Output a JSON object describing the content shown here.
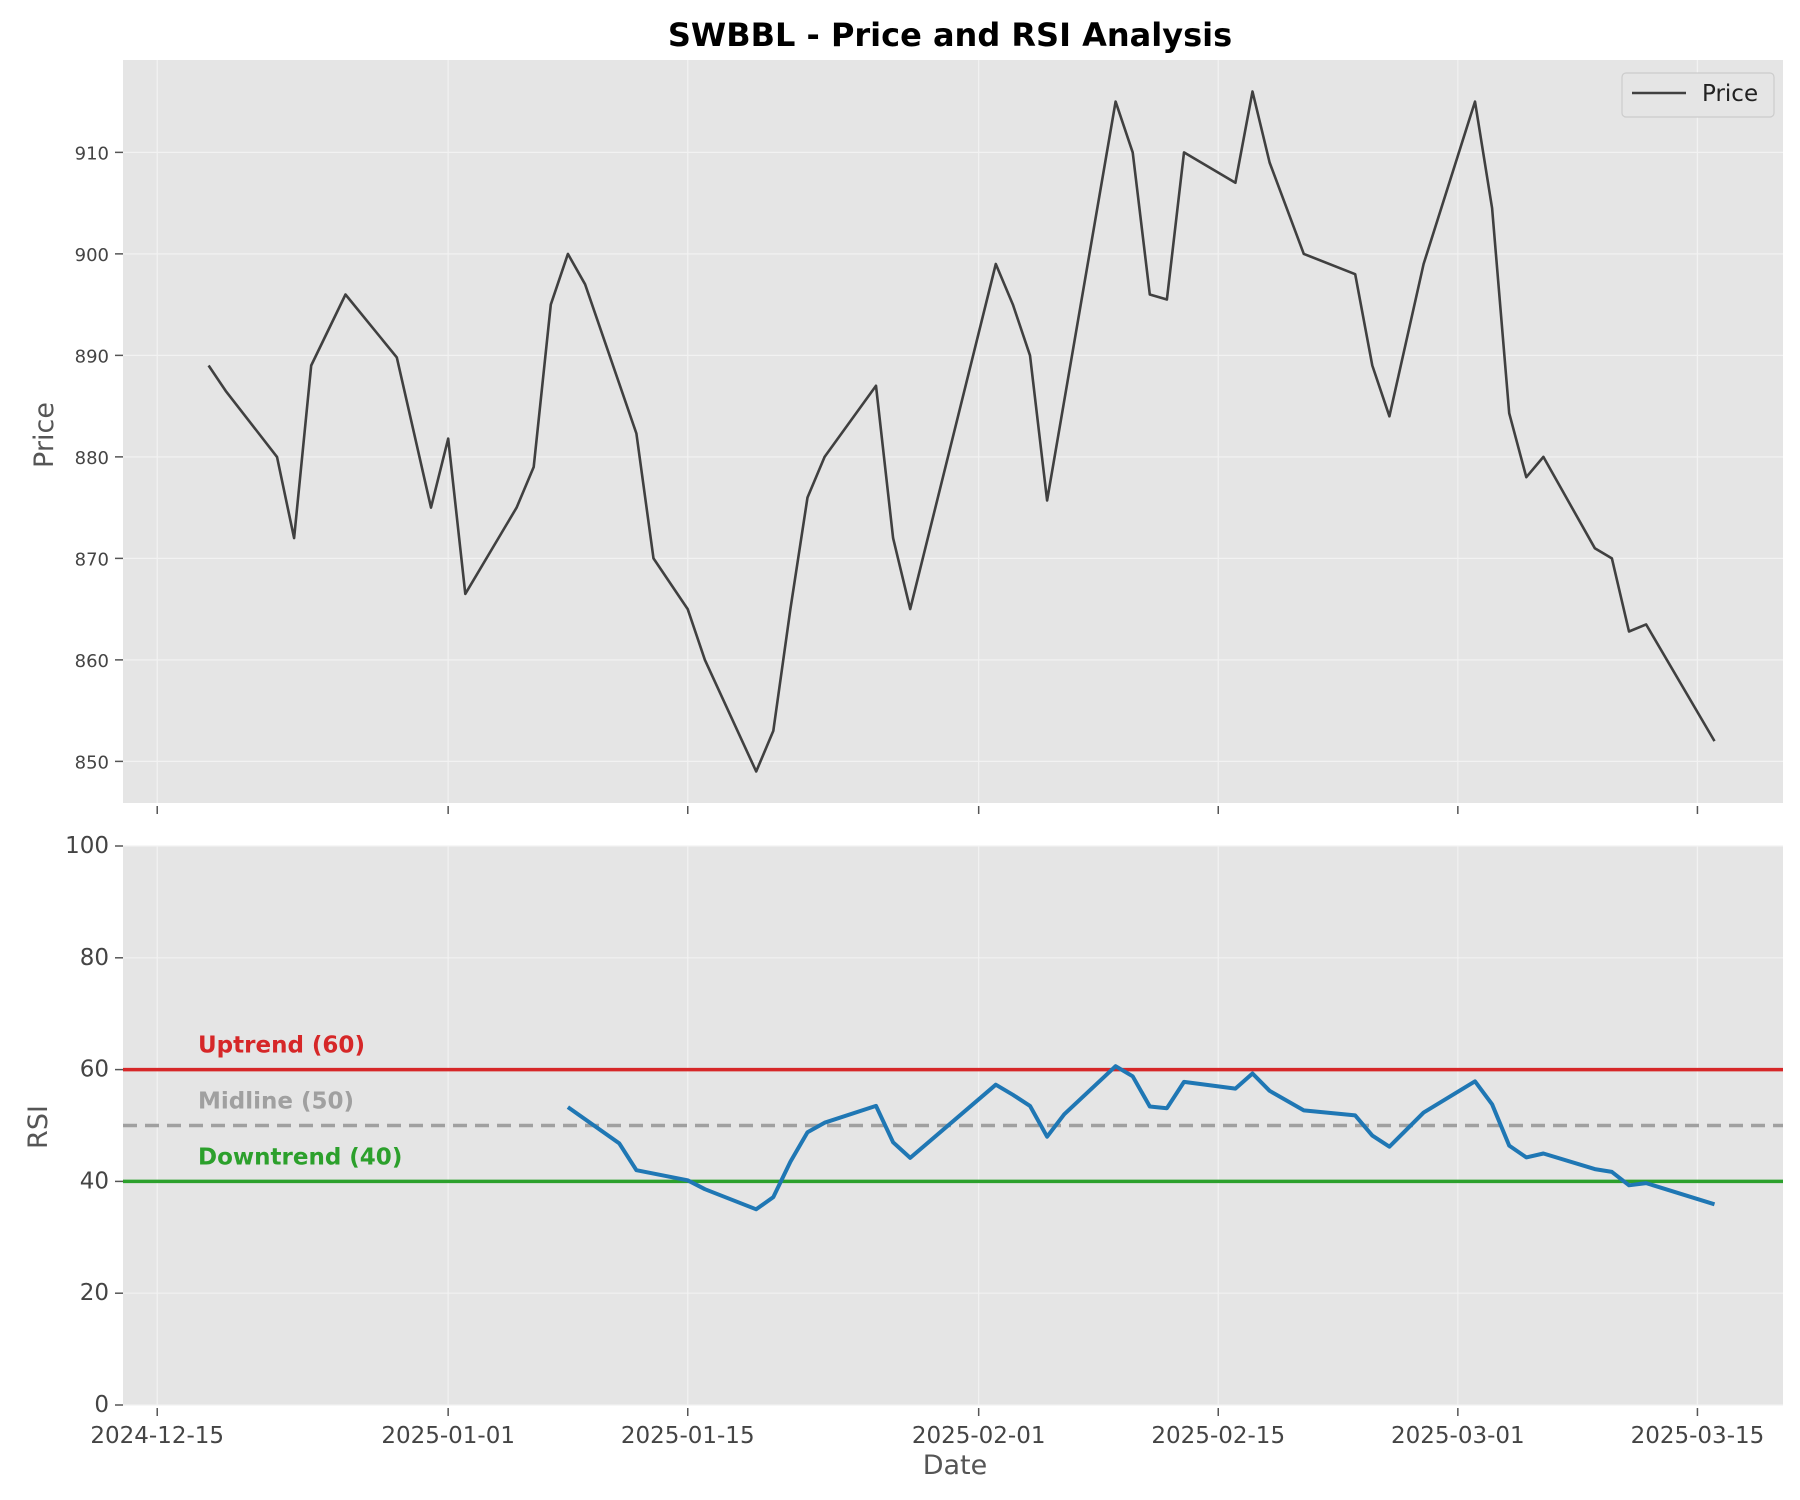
{
  "title": "SWBBL - Price and RSI Analysis",
  "colors": {
    "price_line": "#404040",
    "rsi_line": "#1f77b4",
    "uptrend": "#d62728",
    "midline": "#a0a0a0",
    "downtrend": "#2ca02c",
    "panel_bg": "#e5e5e5",
    "grid": "#f2f2f2"
  },
  "chart_data": [
    {
      "type": "line",
      "panel": "price",
      "ylabel": "Price",
      "xlabel": "",
      "ylim": [
        845.9,
        919.1
      ],
      "yticks": [
        850,
        860,
        870,
        880,
        890,
        900,
        910
      ],
      "xlim": [
        "2024-12-13",
        "2025-03-20"
      ],
      "xticks": [
        "2024-12-15",
        "2025-01-01",
        "2025-01-15",
        "2025-02-01",
        "2025-02-15",
        "2025-03-01",
        "2025-03-15"
      ],
      "grid": true,
      "legend": {
        "position": "top-right",
        "entries": [
          "Price"
        ]
      },
      "series": [
        {
          "name": "Price",
          "points": [
            [
              "2024-12-18",
              889.0
            ],
            [
              "2024-12-19",
              886.5
            ],
            [
              "2024-12-22",
              880.0
            ],
            [
              "2024-12-23",
              872.0
            ],
            [
              "2024-12-24",
              889.0
            ],
            [
              "2024-12-26",
              896.0
            ],
            [
              "2024-12-29",
              889.8
            ],
            [
              "2024-12-31",
              875.0
            ],
            [
              "2025-01-01",
              881.8
            ],
            [
              "2025-01-02",
              866.5
            ],
            [
              "2025-01-05",
              875.0
            ],
            [
              "2025-01-06",
              879.0
            ],
            [
              "2025-01-07",
              895.0
            ],
            [
              "2025-01-08",
              900.0
            ],
            [
              "2025-01-09",
              897.0
            ],
            [
              "2025-01-12",
              882.3
            ],
            [
              "2025-01-13",
              870.0
            ],
            [
              "2025-01-15",
              865.0
            ],
            [
              "2025-01-16",
              860.0
            ],
            [
              "2025-01-19",
              849.0
            ],
            [
              "2025-01-20",
              853.0
            ],
            [
              "2025-01-21",
              865.0
            ],
            [
              "2025-01-22",
              876.0
            ],
            [
              "2025-01-23",
              880.0
            ],
            [
              "2025-01-26",
              887.0
            ],
            [
              "2025-01-27",
              872.0
            ],
            [
              "2025-01-28",
              865.0
            ],
            [
              "2025-02-02",
              899.0
            ],
            [
              "2025-02-03",
              895.0
            ],
            [
              "2025-02-04",
              890.0
            ],
            [
              "2025-02-05",
              875.7
            ],
            [
              "2025-02-09",
              915.0
            ],
            [
              "2025-02-10",
              910.0
            ],
            [
              "2025-02-11",
              896.0
            ],
            [
              "2025-02-12",
              895.5
            ],
            [
              "2025-02-13",
              910.0
            ],
            [
              "2025-02-16",
              907.0
            ],
            [
              "2025-02-17",
              916.0
            ],
            [
              "2025-02-18",
              909.0
            ],
            [
              "2025-02-20",
              900.0
            ],
            [
              "2025-02-23",
              898.0
            ],
            [
              "2025-02-24",
              889.0
            ],
            [
              "2025-02-25",
              884.0
            ],
            [
              "2025-02-27",
              899.0
            ],
            [
              "2025-03-02",
              915.0
            ],
            [
              "2025-03-03",
              904.5
            ],
            [
              "2025-03-04",
              884.3
            ],
            [
              "2025-03-05",
              878.0
            ],
            [
              "2025-03-06",
              880.0
            ],
            [
              "2025-03-09",
              871.0
            ],
            [
              "2025-03-10",
              870.0
            ],
            [
              "2025-03-11",
              862.8
            ],
            [
              "2025-03-12",
              863.5
            ],
            [
              "2025-03-16",
              852.0
            ]
          ]
        }
      ]
    },
    {
      "type": "line",
      "panel": "rsi",
      "ylabel": "RSI",
      "xlabel": "Date",
      "ylim": [
        0,
        100
      ],
      "yticks": [
        0,
        20,
        40,
        60,
        80,
        100
      ],
      "xlim": [
        "2024-12-13",
        "2025-03-20"
      ],
      "xticks": [
        "2024-12-15",
        "2025-01-01",
        "2025-01-15",
        "2025-02-01",
        "2025-02-15",
        "2025-03-01",
        "2025-03-15"
      ],
      "grid": true,
      "reference_lines": [
        {
          "value": 60,
          "label": "Uptrend (60)",
          "style": "solid",
          "color": "#d62728"
        },
        {
          "value": 50,
          "label": "Midline (50)",
          "style": "dashed",
          "color": "#a0a0a0"
        },
        {
          "value": 40,
          "label": "Downtrend (40)",
          "style": "solid",
          "color": "#2ca02c"
        }
      ],
      "series": [
        {
          "name": "RSI",
          "points": [
            [
              "2025-01-08",
              53.3
            ],
            [
              "2025-01-11",
              46.8
            ],
            [
              "2025-01-12",
              42.0
            ],
            [
              "2025-01-15",
              40.2
            ],
            [
              "2025-01-16",
              38.6
            ],
            [
              "2025-01-19",
              35.0
            ],
            [
              "2025-01-20",
              37.2
            ],
            [
              "2025-01-21",
              43.5
            ],
            [
              "2025-01-22",
              48.8
            ],
            [
              "2025-01-23",
              50.5
            ],
            [
              "2025-01-26",
              53.5
            ],
            [
              "2025-01-27",
              47.0
            ],
            [
              "2025-01-28",
              44.2
            ],
            [
              "2025-02-02",
              57.3
            ],
            [
              "2025-02-03",
              55.5
            ],
            [
              "2025-02-04",
              53.5
            ],
            [
              "2025-02-05",
              48.0
            ],
            [
              "2025-02-06",
              52.0
            ],
            [
              "2025-02-09",
              60.6
            ],
            [
              "2025-02-10",
              58.8
            ],
            [
              "2025-02-11",
              53.4
            ],
            [
              "2025-02-12",
              53.1
            ],
            [
              "2025-02-13",
              57.8
            ],
            [
              "2025-02-16",
              56.6
            ],
            [
              "2025-02-17",
              59.3
            ],
            [
              "2025-02-18",
              56.2
            ],
            [
              "2025-02-20",
              52.7
            ],
            [
              "2025-02-23",
              51.8
            ],
            [
              "2025-02-24",
              48.2
            ],
            [
              "2025-02-25",
              46.2
            ],
            [
              "2025-02-27",
              52.3
            ],
            [
              "2025-03-02",
              57.9
            ],
            [
              "2025-03-03",
              53.8
            ],
            [
              "2025-03-04",
              46.4
            ],
            [
              "2025-03-05",
              44.3
            ],
            [
              "2025-03-06",
              45.0
            ],
            [
              "2025-03-09",
              42.2
            ],
            [
              "2025-03-10",
              41.7
            ],
            [
              "2025-03-11",
              39.3
            ],
            [
              "2025-03-12",
              39.7
            ],
            [
              "2025-03-16",
              35.9
            ]
          ]
        }
      ]
    }
  ]
}
